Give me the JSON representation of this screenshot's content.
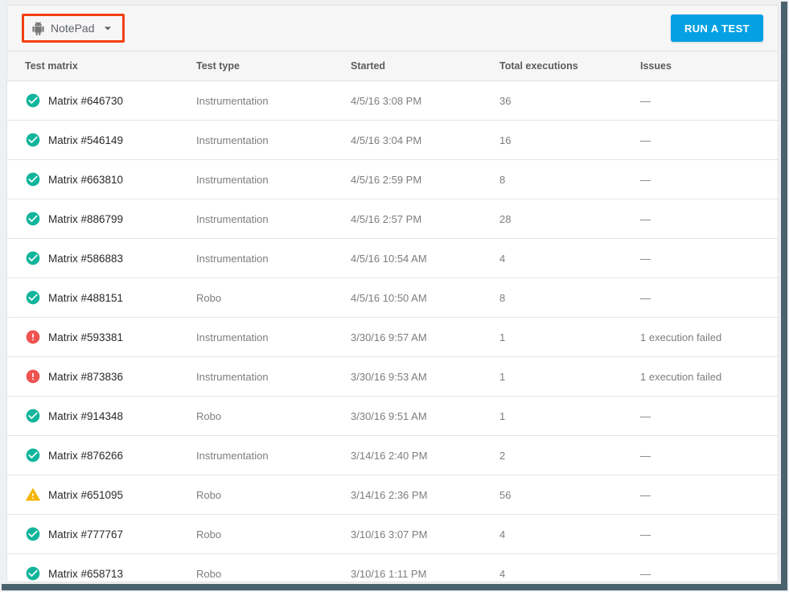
{
  "toolbar": {
    "app_selector": {
      "label": "NotePad",
      "icon": "android-icon"
    },
    "run_test_label": "RUN A TEST"
  },
  "annotation": {
    "highlight_color": "#f2400d"
  },
  "table": {
    "columns": [
      "Test matrix",
      "Test type",
      "Started",
      "Total executions",
      "Issues"
    ],
    "rows": [
      {
        "status": "passed",
        "name": "Matrix #646730",
        "type": "Instrumentation",
        "started": "4/5/16 3:08 PM",
        "executions": "36",
        "issues": "—"
      },
      {
        "status": "passed",
        "name": "Matrix #546149",
        "type": "Instrumentation",
        "started": "4/5/16 3:04 PM",
        "executions": "16",
        "issues": "—"
      },
      {
        "status": "passed",
        "name": "Matrix #663810",
        "type": "Instrumentation",
        "started": "4/5/16 2:59 PM",
        "executions": "8",
        "issues": "—"
      },
      {
        "status": "passed",
        "name": "Matrix #886799",
        "type": "Instrumentation",
        "started": "4/5/16 2:57 PM",
        "executions": "28",
        "issues": "—"
      },
      {
        "status": "passed",
        "name": "Matrix #586883",
        "type": "Instrumentation",
        "started": "4/5/16 10:54 AM",
        "executions": "4",
        "issues": "—"
      },
      {
        "status": "passed",
        "name": "Matrix #488151",
        "type": "Robo",
        "started": "4/5/16 10:50 AM",
        "executions": "8",
        "issues": "—"
      },
      {
        "status": "failed",
        "name": "Matrix #593381",
        "type": "Instrumentation",
        "started": "3/30/16 9:57 AM",
        "executions": "1",
        "issues": "1 execution failed"
      },
      {
        "status": "failed",
        "name": "Matrix #873836",
        "type": "Instrumentation",
        "started": "3/30/16 9:53 AM",
        "executions": "1",
        "issues": "1 execution failed"
      },
      {
        "status": "passed",
        "name": "Matrix #914348",
        "type": "Robo",
        "started": "3/30/16 9:51 AM",
        "executions": "1",
        "issues": "—"
      },
      {
        "status": "passed",
        "name": "Matrix #876266",
        "type": "Instrumentation",
        "started": "3/14/16 2:40 PM",
        "executions": "2",
        "issues": "—"
      },
      {
        "status": "warning",
        "name": "Matrix #651095",
        "type": "Robo",
        "started": "3/14/16 2:36 PM",
        "executions": "56",
        "issues": "—"
      },
      {
        "status": "passed",
        "name": "Matrix #777767",
        "type": "Robo",
        "started": "3/10/16 3:07 PM",
        "executions": "4",
        "issues": "—"
      },
      {
        "status": "passed",
        "name": "Matrix #658713",
        "type": "Robo",
        "started": "3/10/16 1:11 PM",
        "executions": "4",
        "issues": "—"
      }
    ]
  },
  "colors": {
    "passed": "#12b59b",
    "failed": "#ef5350",
    "warning": "#f4b400",
    "accent_blue": "#05a0e4"
  }
}
